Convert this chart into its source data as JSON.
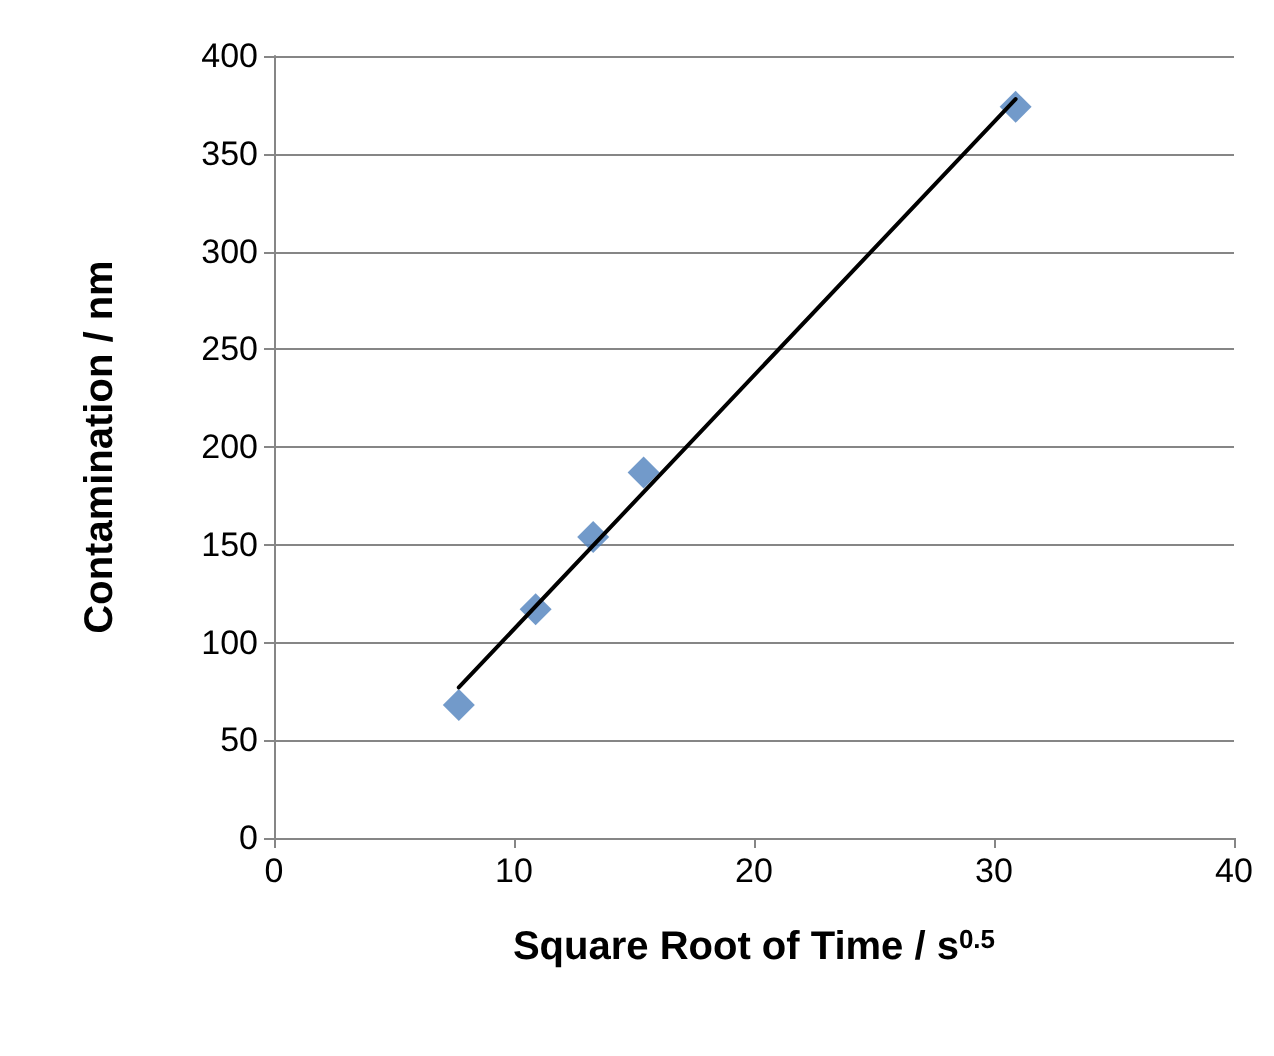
{
  "chart_data": {
    "type": "scatter",
    "xlabel": "Square Root of Time / s$^{0.5}$",
    "ylabel": "Contamination / nm",
    "xlim": [
      0,
      40
    ],
    "xticks": [
      0,
      10,
      20,
      30,
      40
    ],
    "ylim": [
      0,
      400
    ],
    "yticks": [
      0,
      50,
      100,
      150,
      200,
      250,
      300,
      350,
      400
    ],
    "grid": "y",
    "marker": "diamond",
    "series": [
      {
        "type": "scatter",
        "color": "#4f81bd",
        "x": [
          7.7,
          10.9,
          13.3,
          15.4,
          30.9
        ],
        "values": [
          68,
          117,
          154,
          187,
          374
        ]
      },
      {
        "type": "line",
        "color": "#000000",
        "x": [
          7.7,
          30.9
        ],
        "values": [
          77,
          378
        ],
        "marker": "none",
        "line_style": "solid"
      }
    ]
  }
}
